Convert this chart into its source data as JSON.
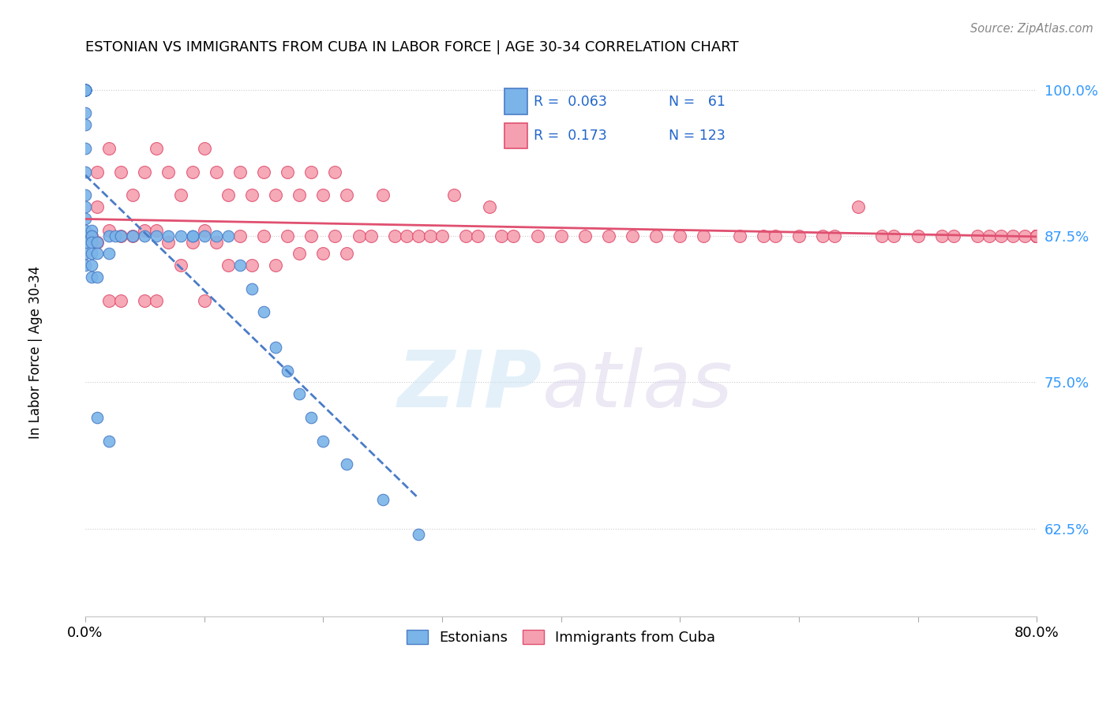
{
  "title": "ESTONIAN VS IMMIGRANTS FROM CUBA IN LABOR FORCE | AGE 30-34 CORRELATION CHART",
  "source": "Source: ZipAtlas.com",
  "ylabel": "In Labor Force | Age 30-34",
  "xlim": [
    0.0,
    0.8
  ],
  "ylim": [
    0.55,
    1.02
  ],
  "yticks": [
    0.625,
    0.75,
    0.875,
    1.0
  ],
  "ytick_labels": [
    "62.5%",
    "75.0%",
    "87.5%",
    "100.0%"
  ],
  "xticks": [
    0.0,
    0.1,
    0.2,
    0.3,
    0.4,
    0.5,
    0.6,
    0.7,
    0.8
  ],
  "xtick_labels": [
    "0.0%",
    "",
    "",
    "",
    "",
    "",
    "",
    "",
    "80.0%"
  ],
  "legend_r1": "R =  0.063",
  "legend_n1": "N =   61",
  "legend_r2": "R =  0.173",
  "legend_n2": "N = 123",
  "color_estonian": "#7ab4e8",
  "color_cuba": "#f5a0b0",
  "color_trendline_estonian": "#4a7cc7",
  "color_trendline_cuba": "#e05070",
  "estonian_x": [
    0.0,
    0.0,
    0.0,
    0.0,
    0.0,
    0.0,
    0.0,
    0.0,
    0.0,
    0.0,
    0.0,
    0.0,
    0.0,
    0.0,
    0.0,
    0.0,
    0.0,
    0.0,
    0.0,
    0.0,
    0.0,
    0.0,
    0.0,
    0.0,
    0.0,
    0.005,
    0.005,
    0.005,
    0.005,
    0.005,
    0.005,
    0.01,
    0.01,
    0.01,
    0.01,
    0.02,
    0.02,
    0.02,
    0.025,
    0.03,
    0.04,
    0.05,
    0.06,
    0.07,
    0.08,
    0.09,
    0.09,
    0.1,
    0.11,
    0.12,
    0.13,
    0.14,
    0.15,
    0.16,
    0.17,
    0.18,
    0.19,
    0.2,
    0.22,
    0.25,
    0.28
  ],
  "estonian_y": [
    1.0,
    1.0,
    1.0,
    1.0,
    1.0,
    1.0,
    1.0,
    1.0,
    1.0,
    1.0,
    1.0,
    1.0,
    1.0,
    1.0,
    0.98,
    0.97,
    0.95,
    0.93,
    0.91,
    0.9,
    0.89,
    0.88,
    0.87,
    0.86,
    0.85,
    0.88,
    0.875,
    0.87,
    0.86,
    0.85,
    0.84,
    0.87,
    0.86,
    0.84,
    0.72,
    0.875,
    0.86,
    0.7,
    0.875,
    0.875,
    0.875,
    0.875,
    0.875,
    0.875,
    0.875,
    0.875,
    0.875,
    0.875,
    0.875,
    0.875,
    0.85,
    0.83,
    0.81,
    0.78,
    0.76,
    0.74,
    0.72,
    0.7,
    0.68,
    0.65,
    0.62
  ],
  "cuba_x": [
    0.005,
    0.01,
    0.01,
    0.01,
    0.02,
    0.02,
    0.02,
    0.03,
    0.03,
    0.03,
    0.04,
    0.04,
    0.05,
    0.05,
    0.05,
    0.06,
    0.06,
    0.06,
    0.07,
    0.07,
    0.08,
    0.08,
    0.09,
    0.09,
    0.1,
    0.1,
    0.1,
    0.11,
    0.11,
    0.12,
    0.12,
    0.13,
    0.13,
    0.14,
    0.14,
    0.15,
    0.15,
    0.16,
    0.16,
    0.17,
    0.17,
    0.18,
    0.18,
    0.19,
    0.19,
    0.2,
    0.2,
    0.21,
    0.21,
    0.22,
    0.22,
    0.23,
    0.24,
    0.25,
    0.26,
    0.27,
    0.28,
    0.29,
    0.3,
    0.31,
    0.32,
    0.33,
    0.34,
    0.35,
    0.36,
    0.38,
    0.4,
    0.42,
    0.44,
    0.46,
    0.48,
    0.5,
    0.52,
    0.55,
    0.57,
    0.6,
    0.62,
    0.65,
    0.67,
    0.7,
    0.72,
    0.58,
    0.63,
    0.68,
    0.73,
    0.75,
    0.76,
    0.77,
    0.78,
    0.79,
    0.8,
    0.8,
    0.8,
    0.8,
    0.8,
    0.8,
    0.8,
    0.8,
    0.8,
    0.8,
    0.8,
    0.8,
    0.8,
    0.8,
    0.8,
    0.8,
    0.8,
    0.8,
    0.8,
    0.8,
    0.8,
    0.8,
    0.8,
    0.8,
    0.8,
    0.8,
    0.8,
    0.8,
    0.8,
    0.8,
    0.8,
    0.8,
    0.8,
    0.8
  ],
  "cuba_y": [
    0.875,
    0.93,
    0.9,
    0.87,
    0.95,
    0.88,
    0.82,
    0.93,
    0.875,
    0.82,
    0.91,
    0.875,
    0.93,
    0.88,
    0.82,
    0.95,
    0.88,
    0.82,
    0.93,
    0.87,
    0.91,
    0.85,
    0.93,
    0.87,
    0.95,
    0.88,
    0.82,
    0.93,
    0.87,
    0.91,
    0.85,
    0.93,
    0.875,
    0.91,
    0.85,
    0.93,
    0.875,
    0.91,
    0.85,
    0.93,
    0.875,
    0.91,
    0.86,
    0.93,
    0.875,
    0.91,
    0.86,
    0.93,
    0.875,
    0.91,
    0.86,
    0.875,
    0.875,
    0.91,
    0.875,
    0.875,
    0.875,
    0.875,
    0.875,
    0.91,
    0.875,
    0.875,
    0.9,
    0.875,
    0.875,
    0.875,
    0.875,
    0.875,
    0.875,
    0.875,
    0.875,
    0.875,
    0.875,
    0.875,
    0.875,
    0.875,
    0.875,
    0.9,
    0.875,
    0.875,
    0.875,
    0.875,
    0.875,
    0.875,
    0.875,
    0.875,
    0.875,
    0.875,
    0.875,
    0.875,
    0.875,
    0.875,
    0.875,
    0.875,
    0.875,
    0.875,
    0.875,
    0.875,
    0.875,
    0.875,
    0.875,
    0.875,
    0.875,
    0.875,
    0.875,
    0.875,
    0.875,
    0.875,
    0.875,
    0.875,
    0.875,
    0.875,
    0.875,
    0.875,
    0.875,
    0.875,
    0.875,
    0.875,
    0.875,
    0.875,
    0.875,
    0.875,
    0.875,
    0.875
  ]
}
